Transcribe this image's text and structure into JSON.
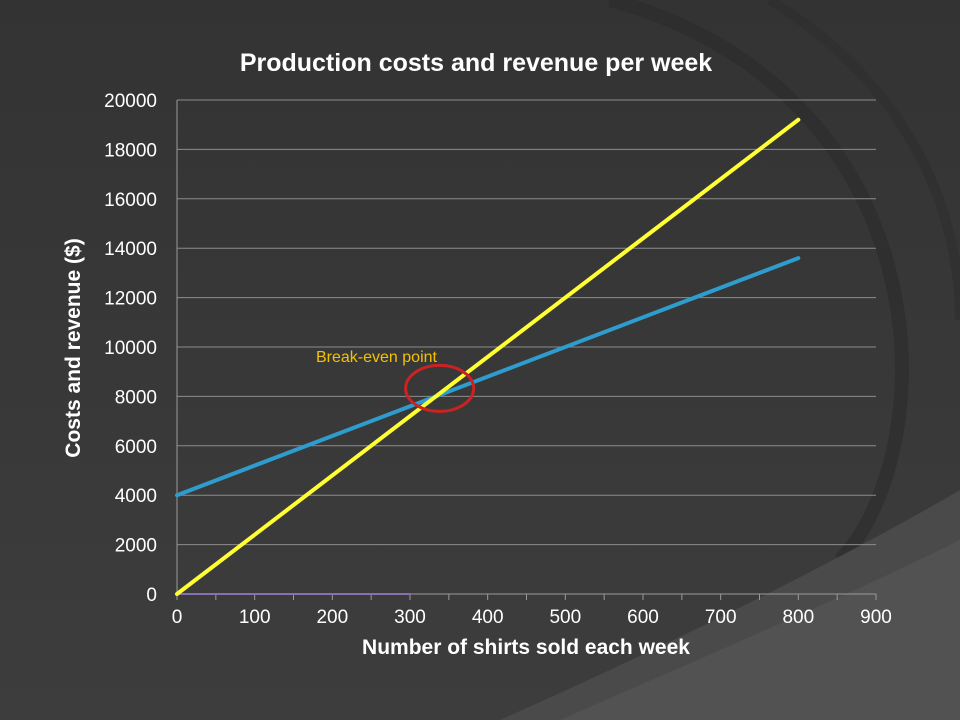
{
  "chart_data": {
    "type": "line",
    "title": "Production costs and revenue per week",
    "xlabel": "Number of shirts sold each week",
    "ylabel": "Costs and revenue ($)",
    "xlim": [
      0,
      900
    ],
    "ylim": [
      0,
      20000
    ],
    "x_ticks": [
      "0",
      "100",
      "200",
      "300",
      "400",
      "500",
      "600",
      "700",
      "800",
      "900"
    ],
    "y_ticks": [
      "0",
      "2000",
      "4000",
      "6000",
      "8000",
      "10000",
      "12000",
      "14000",
      "16000",
      "18000",
      "20000"
    ],
    "grid": "horizontal",
    "series": [
      {
        "color": "#ffff33",
        "x": [
          0,
          800
        ],
        "y": [
          0,
          19200
        ]
      },
      {
        "color": "#2e9ccc",
        "x": [
          0,
          800
        ],
        "y": [
          4000,
          13600
        ]
      },
      {
        "color": "#8a6fb0",
        "x": [
          0,
          300
        ],
        "y": [
          0,
          0
        ]
      }
    ],
    "annotations": [
      {
        "text": "Break-even point",
        "x": 333,
        "y": 8000,
        "color": "#f2c200",
        "marker_color": "#cc2222"
      }
    ]
  }
}
